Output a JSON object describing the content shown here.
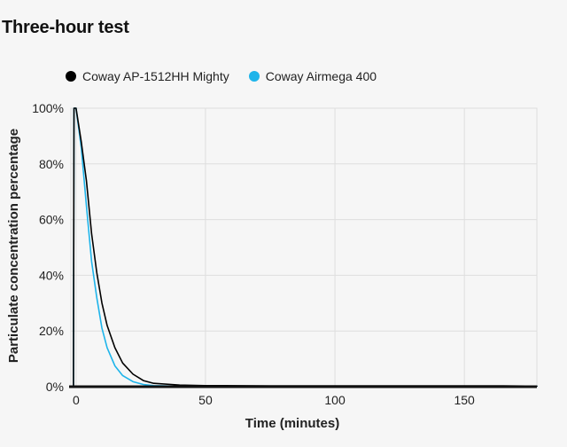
{
  "chart_title": "Three-hour test",
  "chart_data": {
    "type": "line",
    "title": "Three-hour test",
    "xlabel": "Time (minutes)",
    "ylabel": "Particulate concentration percentage",
    "xlim": [
      -2,
      178
    ],
    "ylim": [
      0,
      100
    ],
    "x_ticks": [
      0,
      50,
      100,
      150
    ],
    "x_tick_labels": [
      "0",
      "50",
      "100",
      "150"
    ],
    "y_ticks": [
      0,
      20,
      40,
      60,
      80,
      100
    ],
    "y_tick_labels": [
      "0%",
      "20%",
      "40%",
      "60%",
      "80%",
      "100%"
    ],
    "grid": true,
    "legend_position": "top-left",
    "series": [
      {
        "name": "Coway AP-1512HH Mighty",
        "color": "#000000",
        "x": [
          -1,
          -0.8,
          0,
          2,
          4,
          6,
          8,
          10,
          12,
          15,
          18,
          22,
          26,
          30,
          40,
          50,
          75,
          100,
          125,
          150,
          165,
          178
        ],
        "y": [
          0,
          100,
          100,
          88,
          74,
          55,
          41,
          30,
          22,
          14,
          8.5,
          4.5,
          2.2,
          1.2,
          0.6,
          0.4,
          0.3,
          0.3,
          0.3,
          0.3,
          0.3,
          0.2
        ]
      },
      {
        "name": "Coway Airmega 400",
        "color": "#1eb4ea",
        "x": [
          -1,
          -0.8,
          0,
          2,
          4,
          6,
          8,
          10,
          12,
          15,
          18,
          22,
          26,
          30,
          40,
          50,
          75,
          100,
          125,
          150,
          165,
          178
        ],
        "y": [
          0,
          100,
          100,
          86,
          65,
          45,
          32,
          21,
          14,
          7.5,
          4,
          1.8,
          0.8,
          0.4,
          0.2,
          0.2,
          0.2,
          0.2,
          0.2,
          0.2,
          0.2,
          0.2
        ]
      }
    ]
  }
}
